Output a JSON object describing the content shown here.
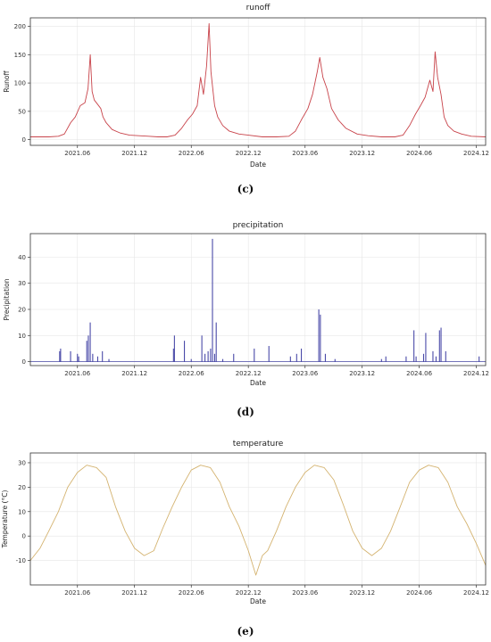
{
  "chart_data": [
    {
      "type": "line",
      "title": "runoff",
      "xlabel": "Date",
      "ylabel": "Runoff",
      "panel_label": "(c)",
      "color": "#c8434a",
      "x_range": [
        "2021-01-01",
        "2024-12-31"
      ],
      "x_ticks": [
        "2021.06",
        "2021.12",
        "2022.06",
        "2022.12",
        "2023.06",
        "2023.12",
        "2024.06",
        "2024.12"
      ],
      "y_range": [
        -10,
        215
      ],
      "y_ticks": [
        0,
        50,
        100,
        150,
        200
      ],
      "grid": true,
      "series": [
        {
          "x": [
            "2021-01-01",
            "2021-03-01",
            "2021-04-01",
            "2021-04-20",
            "2021-05-10",
            "2021-05-25",
            "2021-06-10",
            "2021-06-25",
            "2021-07-05",
            "2021-07-12",
            "2021-07-18",
            "2021-07-25",
            "2021-08-05",
            "2021-08-15",
            "2021-08-22",
            "2021-09-01",
            "2021-09-20",
            "2021-10-15",
            "2021-11-15",
            "2021-12-15",
            "2022-01-15",
            "2022-02-15",
            "2022-03-15",
            "2022-04-10",
            "2022-05-01",
            "2022-05-20",
            "2022-06-05",
            "2022-06-20",
            "2022-07-01",
            "2022-07-10",
            "2022-07-20",
            "2022-07-28",
            "2022-08-03",
            "2022-08-08",
            "2022-08-15",
            "2022-08-25",
            "2022-09-10",
            "2022-10-01",
            "2022-11-01",
            "2022-12-01",
            "2023-01-15",
            "2023-03-01",
            "2023-04-10",
            "2023-05-01",
            "2023-05-20",
            "2023-06-10",
            "2023-06-25",
            "2023-07-10",
            "2023-07-18",
            "2023-07-28",
            "2023-08-10",
            "2023-08-25",
            "2023-09-15",
            "2023-10-10",
            "2023-11-15",
            "2023-12-20",
            "2024-02-01",
            "2024-03-15",
            "2024-04-10",
            "2024-05-01",
            "2024-05-20",
            "2024-06-05",
            "2024-06-20",
            "2024-07-05",
            "2024-07-15",
            "2024-07-22",
            "2024-07-30",
            "2024-08-10",
            "2024-08-20",
            "2024-09-01",
            "2024-09-20",
            "2024-10-15",
            "2024-11-15",
            "2024-12-31"
          ],
          "y": [
            5,
            5,
            6,
            10,
            30,
            40,
            60,
            65,
            90,
            150,
            85,
            70,
            62,
            55,
            40,
            30,
            18,
            12,
            8,
            7,
            6,
            5,
            5,
            8,
            20,
            35,
            45,
            60,
            110,
            80,
            130,
            205,
            120,
            95,
            60,
            40,
            25,
            15,
            10,
            8,
            5,
            5,
            6,
            15,
            35,
            55,
            80,
            120,
            145,
            110,
            90,
            55,
            35,
            20,
            10,
            7,
            5,
            5,
            8,
            25,
            45,
            60,
            75,
            105,
            85,
            155,
            110,
            80,
            40,
            25,
            15,
            10,
            6,
            5
          ]
        }
      ]
    },
    {
      "type": "bar",
      "title": "precipitation",
      "xlabel": "Date",
      "ylabel": "Precipitation",
      "panel_label": "(d)",
      "color": "#4a4aa8",
      "x_range": [
        "2021-01-01",
        "2024-12-31"
      ],
      "x_ticks": [
        "2021.06",
        "2021.12",
        "2022.06",
        "2022.12",
        "2023.06",
        "2023.12",
        "2024.06",
        "2024.12"
      ],
      "y_range": [
        -1.5,
        49
      ],
      "y_ticks": [
        0,
        10,
        20,
        30,
        40
      ],
      "grid": true,
      "series": [
        {
          "x": [
            "2021-04-05",
            "2021-04-08",
            "2021-05-10",
            "2021-06-01",
            "2021-06-05",
            "2021-07-01",
            "2021-07-06",
            "2021-07-12",
            "2021-07-20",
            "2021-08-05",
            "2021-08-20",
            "2021-09-10",
            "2022-04-05",
            "2022-04-08",
            "2022-05-10",
            "2022-06-01",
            "2022-07-05",
            "2022-07-15",
            "2022-07-25",
            "2022-08-02",
            "2022-08-08",
            "2022-08-15",
            "2022-08-20",
            "2022-09-10",
            "2022-10-15",
            "2022-12-20",
            "2023-02-05",
            "2023-04-15",
            "2023-05-05",
            "2023-05-20",
            "2023-07-15",
            "2023-07-20",
            "2023-08-05",
            "2023-09-05",
            "2024-02-01",
            "2024-02-15",
            "2024-04-20",
            "2024-05-15",
            "2024-05-22",
            "2024-06-15",
            "2024-06-22",
            "2024-07-15",
            "2024-07-25",
            "2024-08-05",
            "2024-08-10",
            "2024-08-25",
            "2024-12-10"
          ],
          "y": [
            4,
            5,
            4,
            3,
            2,
            8,
            10,
            15,
            3,
            2,
            4,
            1,
            5,
            10,
            8,
            1,
            10,
            3,
            4,
            5,
            47,
            3,
            15,
            1,
            3,
            5,
            6,
            2,
            3,
            5,
            20,
            18,
            3,
            1,
            1,
            2,
            2,
            12,
            2,
            3,
            11,
            4,
            2,
            12,
            13,
            4,
            2
          ]
        }
      ]
    },
    {
      "type": "line",
      "title": "temperature",
      "xlabel": "Date",
      "ylabel": "Temperature (°C)",
      "panel_label": "(e)",
      "color": "#d4b370",
      "x_range": [
        "2021-01-01",
        "2024-12-31"
      ],
      "x_ticks": [
        "2021.06",
        "2021.12",
        "2022.06",
        "2022.12",
        "2023.06",
        "2023.12",
        "2024.06",
        "2024.12"
      ],
      "y_range": [
        -20,
        34
      ],
      "y_ticks": [
        -10,
        0,
        10,
        20,
        30
      ],
      "grid": true,
      "series": [
        {
          "x": [
            "2021-01-01",
            "2021-02-01",
            "2021-03-01",
            "2021-04-01",
            "2021-05-01",
            "2021-06-01",
            "2021-07-01",
            "2021-08-01",
            "2021-09-01",
            "2021-10-01",
            "2021-11-01",
            "2021-12-01",
            "2022-01-01",
            "2022-02-01",
            "2022-03-01",
            "2022-04-01",
            "2022-05-01",
            "2022-06-01",
            "2022-07-01",
            "2022-08-01",
            "2022-09-01",
            "2022-10-01",
            "2022-11-01",
            "2022-12-01",
            "2022-12-25",
            "2023-01-15",
            "2023-02-01",
            "2023-03-01",
            "2023-04-01",
            "2023-05-01",
            "2023-06-01",
            "2023-07-01",
            "2023-08-01",
            "2023-09-01",
            "2023-10-01",
            "2023-11-01",
            "2023-12-01",
            "2024-01-01",
            "2024-02-01",
            "2024-03-01",
            "2024-04-01",
            "2024-05-01",
            "2024-06-01",
            "2024-07-01",
            "2024-08-01",
            "2024-09-01",
            "2024-10-01",
            "2024-11-01",
            "2024-12-01",
            "2024-12-31"
          ],
          "y": [
            -10,
            -5,
            2,
            10,
            20,
            26,
            29,
            28,
            24,
            12,
            2,
            -5,
            -8,
            -6,
            3,
            12,
            20,
            27,
            29,
            28,
            22,
            12,
            4,
            -6,
            -16,
            -8,
            -6,
            2,
            12,
            20,
            26,
            29,
            28,
            23,
            13,
            2,
            -5,
            -8,
            -5,
            2,
            12,
            22,
            27,
            29,
            28,
            22,
            12,
            5,
            -3,
            -12
          ]
        }
      ]
    }
  ]
}
